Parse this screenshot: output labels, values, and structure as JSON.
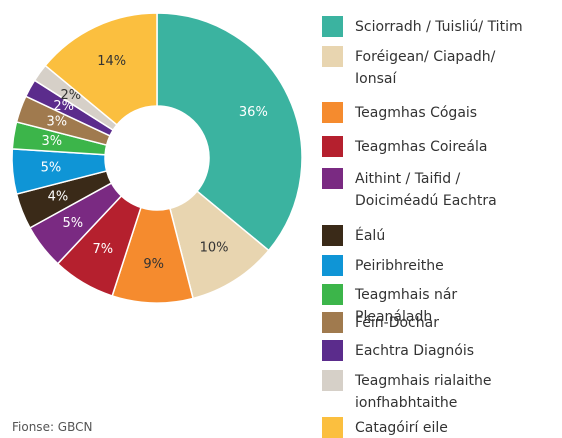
{
  "chart_data": {
    "type": "donut",
    "categories": [
      "Sciorradh / Tuisliú/ Titim",
      "Foréigean/ Ciapadh/ Ionsaí",
      "Teagmhas Cógais",
      "Teagmhas Coireála",
      "Aithint / Taifid / Doiciméadú Eachtra",
      "Éalú",
      "Peiribhreithe",
      "Teagmhais nár Pleanáladh",
      "Féin-Dochar",
      "Eachtra Diagnóis",
      "Teagmhais rialaithe ionfhabhtaithe",
      "Catagóirí eile"
    ],
    "values": [
      36,
      10,
      9,
      7,
      5,
      4,
      5,
      3,
      3,
      2,
      2,
      14
    ],
    "value_labels": [
      "36%",
      "10%",
      "9%",
      "7%",
      "5%",
      "4%",
      "5%",
      "3%",
      "3%",
      "2%",
      "2%",
      "14%"
    ],
    "colors": [
      "#3bb3a0",
      "#e8d5b0",
      "#f58b2e",
      "#b5202e",
      "#7a2a82",
      "#3a2a18",
      "#0f95d6",
      "#3cb54a",
      "#a07a4e",
      "#5b2c8c",
      "#d6d0c8",
      "#fbbf3f"
    ],
    "source": "Fionse: GBCN"
  }
}
